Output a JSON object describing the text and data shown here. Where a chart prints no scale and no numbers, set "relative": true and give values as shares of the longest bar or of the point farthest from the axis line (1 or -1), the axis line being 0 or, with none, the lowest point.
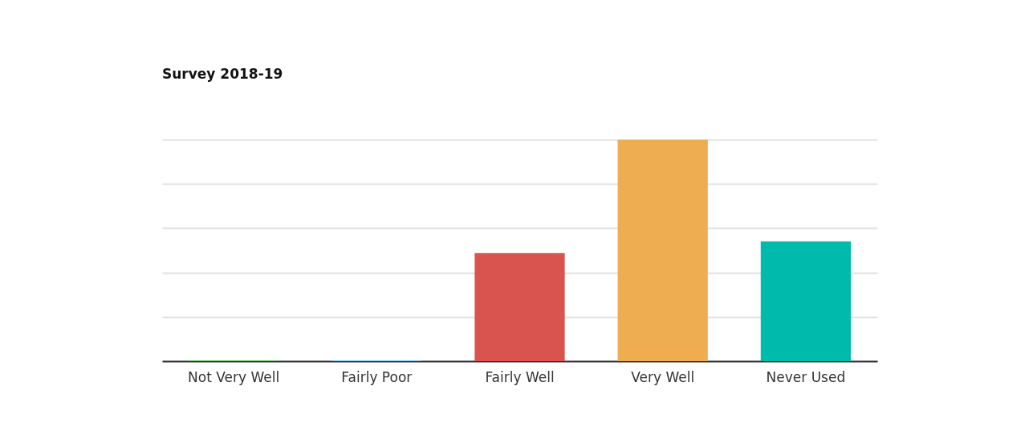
{
  "chart_data": {
    "type": "bar",
    "title": "Survey 2018-19",
    "relative": true,
    "grid": "y",
    "categories": [
      "Not Very Well",
      "Fairly Poor",
      "Fairly Well",
      "Very Well",
      "Never Used"
    ],
    "values": [
      0.004,
      0.004,
      0.488,
      1,
      0.541
    ],
    "colors": [
      "#6cc26c",
      "#7dc6e6",
      "#d9534f",
      "#eead51",
      "#00bbab"
    ]
  }
}
